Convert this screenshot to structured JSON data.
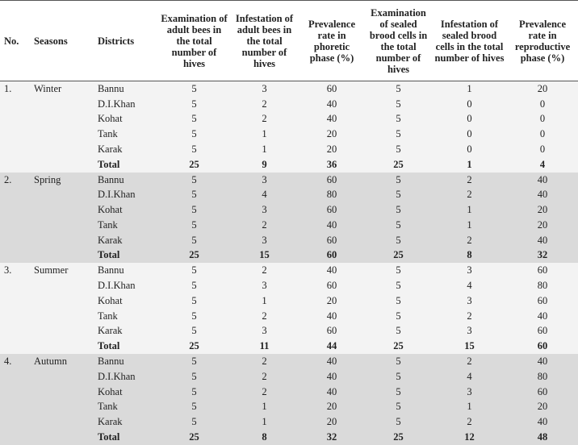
{
  "table": {
    "headers": [
      "No.",
      "Seasons",
      "Districts",
      "Examination of adult bees in the total number of hives",
      "Infestation of adult bees in the total number of hives",
      "Prevalence rate in phoretic phase (%)",
      "Examination of sealed brood cells in the total number of hives",
      "Infestation of sealed brood cells in the total number of hives",
      "Prevalence rate in reproductive phase (%)"
    ],
    "groups": [
      {
        "no": "1.",
        "season": "Winter",
        "rows": [
          [
            "Bannu",
            5,
            3,
            60,
            5,
            1,
            20
          ],
          [
            "D.I.Khan",
            5,
            2,
            40,
            5,
            0,
            0
          ],
          [
            "Kohat",
            5,
            2,
            40,
            5,
            0,
            0
          ],
          [
            "Tank",
            5,
            1,
            20,
            5,
            0,
            0
          ],
          [
            "Karak",
            5,
            1,
            20,
            5,
            0,
            0
          ],
          [
            "Total",
            25,
            9,
            36,
            25,
            1,
            4
          ]
        ]
      },
      {
        "no": "2.",
        "season": "Spring",
        "rows": [
          [
            "Bannu",
            5,
            3,
            60,
            5,
            2,
            40
          ],
          [
            "D.I.Khan",
            5,
            4,
            80,
            5,
            2,
            40
          ],
          [
            "Kohat",
            5,
            3,
            60,
            5,
            1,
            20
          ],
          [
            "Tank",
            5,
            2,
            40,
            5,
            1,
            20
          ],
          [
            "Karak",
            5,
            3,
            60,
            5,
            2,
            40
          ],
          [
            "Total",
            25,
            15,
            60,
            25,
            8,
            32
          ]
        ]
      },
      {
        "no": "3.",
        "season": "Summer",
        "rows": [
          [
            "Bannu",
            5,
            2,
            40,
            5,
            3,
            60
          ],
          [
            "D.I.Khan",
            5,
            3,
            60,
            5,
            4,
            80
          ],
          [
            "Kohat",
            5,
            1,
            20,
            5,
            3,
            60
          ],
          [
            "Tank",
            5,
            2,
            40,
            5,
            2,
            40
          ],
          [
            "Karak",
            5,
            3,
            60,
            5,
            3,
            60
          ],
          [
            "Total",
            25,
            11,
            44,
            25,
            15,
            60
          ]
        ]
      },
      {
        "no": "4.",
        "season": "Autumn",
        "rows": [
          [
            "Bannu",
            5,
            2,
            40,
            5,
            2,
            40
          ],
          [
            "D.I.Khan",
            5,
            2,
            40,
            5,
            4,
            80
          ],
          [
            "Kohat",
            5,
            2,
            40,
            5,
            3,
            60
          ],
          [
            "Tank",
            5,
            1,
            20,
            5,
            1,
            20
          ],
          [
            "Karak",
            5,
            1,
            20,
            5,
            2,
            40
          ],
          [
            "Total",
            25,
            8,
            32,
            25,
            12,
            48
          ]
        ]
      }
    ]
  }
}
